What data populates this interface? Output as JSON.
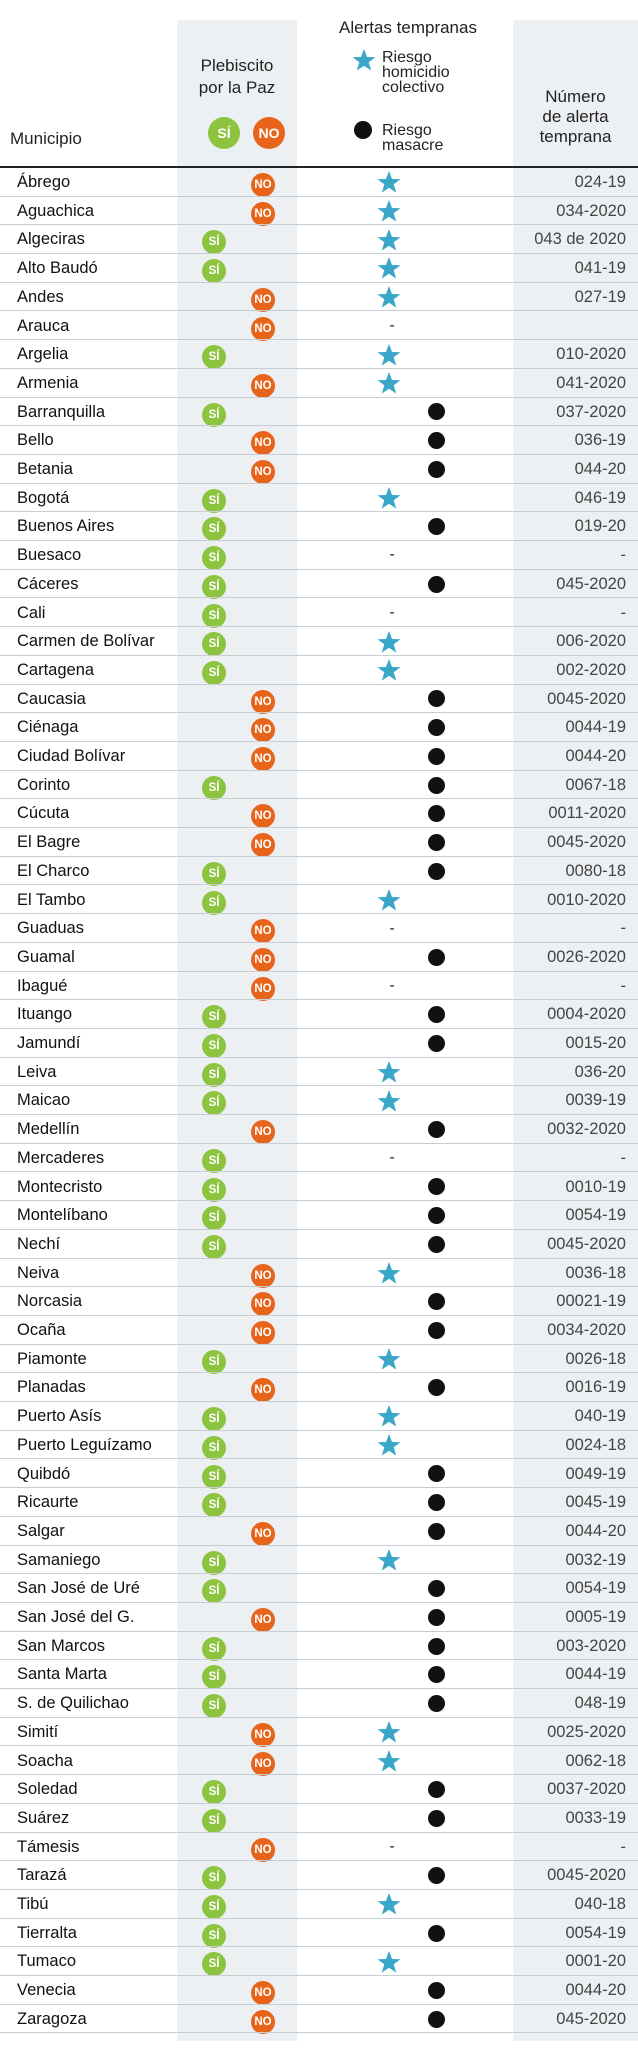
{
  "colors": {
    "si": "#8cc43f",
    "no": "#e8641b",
    "star": "#3aa6c8",
    "dot": "#111111",
    "shade": "#edf0f3"
  },
  "header": {
    "municipio": "Municipio",
    "plebiscito_line1": "Plebiscito",
    "plebiscito_line2": "por la Paz",
    "si_badge": "SÍ",
    "no_badge": "NO",
    "alertas_title": "Alertas tempranas",
    "legend_star_l1": "Riesgo",
    "legend_star_l2": "homicidio",
    "legend_star_l3": "colectivo",
    "legend_dot_l1": "Riesgo",
    "legend_dot_l2": "masacre",
    "numero_l1": "Número",
    "numero_l2": "de alerta",
    "numero_l3": "temprana",
    "star_icon": "star-icon",
    "dot_icon": "circle-icon"
  },
  "rows": [
    {
      "municipio": "Ábrego",
      "plebiscito": "NO",
      "alerta": "star",
      "numero": "024-19"
    },
    {
      "municipio": "Aguachica",
      "plebiscito": "NO",
      "alerta": "star",
      "numero": "034-2020"
    },
    {
      "municipio": "Algeciras",
      "plebiscito": "SÍ",
      "alerta": "star",
      "numero": "043 de 2020"
    },
    {
      "municipio": "Alto Baudó",
      "plebiscito": "SÍ",
      "alerta": "star",
      "numero": "041-19"
    },
    {
      "municipio": "Andes",
      "plebiscito": "NO",
      "alerta": "star",
      "numero": "027-19"
    },
    {
      "municipio": "Arauca",
      "plebiscito": "NO",
      "alerta": "-",
      "numero": ""
    },
    {
      "municipio": "Argelia",
      "plebiscito": "SÍ",
      "alerta": "star",
      "numero": "010-2020"
    },
    {
      "municipio": "Armenia",
      "plebiscito": "NO",
      "alerta": "star",
      "numero": "041-2020"
    },
    {
      "municipio": "Barranquilla",
      "plebiscito": "SÍ",
      "alerta": "dot",
      "numero": "037-2020"
    },
    {
      "municipio": "Bello",
      "plebiscito": "NO",
      "alerta": "dot",
      "numero": "036-19"
    },
    {
      "municipio": "Betania",
      "plebiscito": "NO",
      "alerta": "dot",
      "numero": "044-20"
    },
    {
      "municipio": "Bogotá",
      "plebiscito": "SÍ",
      "alerta": "star",
      "numero": "046-19"
    },
    {
      "municipio": "Buenos Aires",
      "plebiscito": "SÍ",
      "alerta": "dot",
      "numero": "019-20"
    },
    {
      "municipio": "Buesaco",
      "plebiscito": "SÍ",
      "alerta": "-",
      "numero": "-"
    },
    {
      "municipio": "Cáceres",
      "plebiscito": "SÍ",
      "alerta": "dot",
      "numero": "045-2020"
    },
    {
      "municipio": "Cali",
      "plebiscito": "SÍ",
      "alerta": "-",
      "numero": "-"
    },
    {
      "municipio": "Carmen de Bolívar",
      "plebiscito": "SÍ",
      "alerta": "star",
      "numero": "006-2020"
    },
    {
      "municipio": "Cartagena",
      "plebiscito": "SÍ",
      "alerta": "star",
      "numero": "002-2020"
    },
    {
      "municipio": "Caucasia",
      "plebiscito": "NO",
      "alerta": "dot",
      "numero": "0045-2020"
    },
    {
      "municipio": "Ciénaga",
      "plebiscito": "NO",
      "alerta": "dot",
      "numero": "0044-19"
    },
    {
      "municipio": "Ciudad Bolívar",
      "plebiscito": "NO",
      "alerta": "dot",
      "numero": "0044-20"
    },
    {
      "municipio": "Corinto",
      "plebiscito": "SÍ",
      "alerta": "dot",
      "numero": "0067-18"
    },
    {
      "municipio": "Cúcuta",
      "plebiscito": "NO",
      "alerta": "dot",
      "numero": "0011-2020"
    },
    {
      "municipio": "El Bagre",
      "plebiscito": "NO",
      "alerta": "dot",
      "numero": "0045-2020"
    },
    {
      "municipio": "El Charco",
      "plebiscito": "SÍ",
      "alerta": "dot",
      "numero": "0080-18"
    },
    {
      "municipio": "El Tambo",
      "plebiscito": "SÍ",
      "alerta": "star",
      "numero": "0010-2020"
    },
    {
      "municipio": "Guaduas",
      "plebiscito": "NO",
      "alerta": "-",
      "numero": "-"
    },
    {
      "municipio": "Guamal",
      "plebiscito": "NO",
      "alerta": "dot",
      "numero": "0026-2020"
    },
    {
      "municipio": "Ibagué",
      "plebiscito": "NO",
      "alerta": "-",
      "numero": "-"
    },
    {
      "municipio": "Ituango",
      "plebiscito": "SÍ",
      "alerta": "dot",
      "numero": "0004-2020"
    },
    {
      "municipio": "Jamundí",
      "plebiscito": "SÍ",
      "alerta": "dot",
      "numero": "0015-20"
    },
    {
      "municipio": "Leiva",
      "plebiscito": "SÍ",
      "alerta": "star",
      "numero": "036-20"
    },
    {
      "municipio": "Maicao",
      "plebiscito": "SÍ",
      "alerta": "star",
      "numero": "0039-19"
    },
    {
      "municipio": "Medellín",
      "plebiscito": "NO",
      "alerta": "dot",
      "numero": "0032-2020"
    },
    {
      "municipio": "Mercaderes",
      "plebiscito": "SÍ",
      "alerta": "-",
      "numero": "-"
    },
    {
      "municipio": "Montecristo",
      "plebiscito": "SÍ",
      "alerta": "dot",
      "numero": "0010-19"
    },
    {
      "municipio": "Montelíbano",
      "plebiscito": "SÍ",
      "alerta": "dot",
      "numero": "0054-19"
    },
    {
      "municipio": "Nechí",
      "plebiscito": "SÍ",
      "alerta": "dot",
      "numero": "0045-2020"
    },
    {
      "municipio": "Neiva",
      "plebiscito": "NO",
      "alerta": "star",
      "numero": "0036-18"
    },
    {
      "municipio": "Norcasia",
      "plebiscito": "NO",
      "alerta": "dot",
      "numero": "00021-19"
    },
    {
      "municipio": "Ocaña",
      "plebiscito": "NO",
      "alerta": "dot",
      "numero": "0034-2020"
    },
    {
      "municipio": "Piamonte",
      "plebiscito": "SÍ",
      "alerta": "star",
      "numero": "0026-18"
    },
    {
      "municipio": "Planadas",
      "plebiscito": "NO",
      "alerta": "dot",
      "numero": "0016-19"
    },
    {
      "municipio": "Puerto Asís",
      "plebiscito": "SÍ",
      "alerta": "star",
      "numero": "040-19"
    },
    {
      "municipio": "Puerto Leguízamo",
      "plebiscito": "SÍ",
      "alerta": "star",
      "numero": "0024-18"
    },
    {
      "municipio": "Quibdó",
      "plebiscito": "SÍ",
      "alerta": "dot",
      "numero": "0049-19"
    },
    {
      "municipio": "Ricaurte",
      "plebiscito": "SÍ",
      "alerta": "dot",
      "numero": "0045-19"
    },
    {
      "municipio": "Salgar",
      "plebiscito": "NO",
      "alerta": "dot",
      "numero": "0044-20"
    },
    {
      "municipio": "Samaniego",
      "plebiscito": "SÍ",
      "alerta": "star",
      "numero": "0032-19"
    },
    {
      "municipio": "San José de Uré",
      "plebiscito": "SÍ",
      "alerta": "dot",
      "numero": "0054-19"
    },
    {
      "municipio": "San José del G.",
      "plebiscito": "NO",
      "alerta": "dot",
      "numero": "0005-19"
    },
    {
      "municipio": "San Marcos",
      "plebiscito": "SÍ",
      "alerta": "dot",
      "numero": "003-2020"
    },
    {
      "municipio": "Santa Marta",
      "plebiscito": "SÍ",
      "alerta": "dot",
      "numero": "0044-19"
    },
    {
      "municipio": "S. de Quilichao",
      "plebiscito": "SÍ",
      "alerta": "dot",
      "numero": "048-19"
    },
    {
      "municipio": "Simití",
      "plebiscito": "NO",
      "alerta": "star",
      "numero": "0025-2020"
    },
    {
      "municipio": "Soacha",
      "plebiscito": "NO",
      "alerta": "star",
      "numero": "0062-18"
    },
    {
      "municipio": "Soledad",
      "plebiscito": "SÍ",
      "alerta": "dot",
      "numero": "0037-2020"
    },
    {
      "municipio": "Suárez",
      "plebiscito": "SÍ",
      "alerta": "dot",
      "numero": "0033-19"
    },
    {
      "municipio": "Támesis",
      "plebiscito": "NO",
      "alerta": "-",
      "numero": "-"
    },
    {
      "municipio": "Tarazá",
      "plebiscito": "SÍ",
      "alerta": "dot",
      "numero": "0045-2020"
    },
    {
      "municipio": "Tibú",
      "plebiscito": "SÍ",
      "alerta": "star",
      "numero": "040-18"
    },
    {
      "municipio": "Tierralta",
      "plebiscito": "SÍ",
      "alerta": "dot",
      "numero": "0054-19"
    },
    {
      "municipio": "Tumaco",
      "plebiscito": "SÍ",
      "alerta": "star",
      "numero": "0001-20"
    },
    {
      "municipio": "Venecia",
      "plebiscito": "NO",
      "alerta": "dot",
      "numero": "0044-20"
    },
    {
      "municipio": "Zaragoza",
      "plebiscito": "NO",
      "alerta": "dot",
      "numero": "045-2020"
    }
  ]
}
